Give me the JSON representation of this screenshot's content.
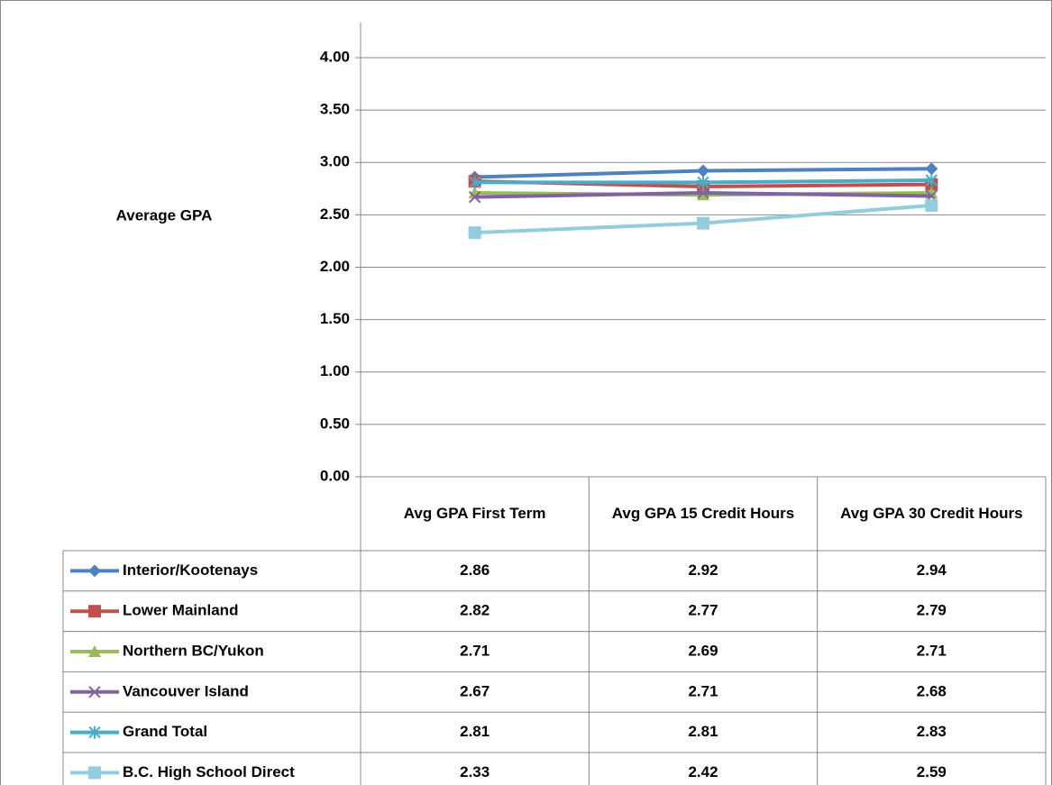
{
  "chart_data": {
    "type": "line",
    "y_axis_label": "Average GPA",
    "categories": [
      "Avg GPA First Term",
      "Avg GPA 15 Credit Hours",
      "Avg GPA 30 Credit Hours"
    ],
    "ylim": [
      0,
      4
    ],
    "yticks": [
      {
        "value": 0,
        "label": "0.00"
      },
      {
        "value": 0.5,
        "label": "0.50"
      },
      {
        "value": 1,
        "label": "1.00"
      },
      {
        "value": 1.5,
        "label": "1.50"
      },
      {
        "value": 2,
        "label": "2.00"
      },
      {
        "value": 2.5,
        "label": "2.50"
      },
      {
        "value": 3,
        "label": "3.00"
      },
      {
        "value": 3.5,
        "label": "3.50"
      },
      {
        "value": 4,
        "label": "4.00"
      }
    ],
    "grid": true,
    "data_table": true,
    "series": [
      {
        "name": "Interior/Kootenays",
        "color": "#4f81bd",
        "marker": "diamond",
        "values": [
          2.86,
          2.92,
          2.94
        ]
      },
      {
        "name": "Lower Mainland",
        "color": "#c0504d",
        "marker": "square",
        "values": [
          2.82,
          2.77,
          2.79
        ]
      },
      {
        "name": "Northern BC/Yukon",
        "color": "#9bbb59",
        "marker": "triangle",
        "values": [
          2.71,
          2.69,
          2.71
        ]
      },
      {
        "name": "Vancouver Island",
        "color": "#8064a2",
        "marker": "x",
        "values": [
          2.67,
          2.71,
          2.68
        ]
      },
      {
        "name": "Grand Total",
        "color": "#4bacc6",
        "marker": "star",
        "values": [
          2.81,
          2.81,
          2.83
        ]
      },
      {
        "name": "B.C. High School Direct",
        "color": "#93cddd",
        "marker": "square",
        "values": [
          2.33,
          2.42,
          2.59
        ]
      }
    ]
  }
}
